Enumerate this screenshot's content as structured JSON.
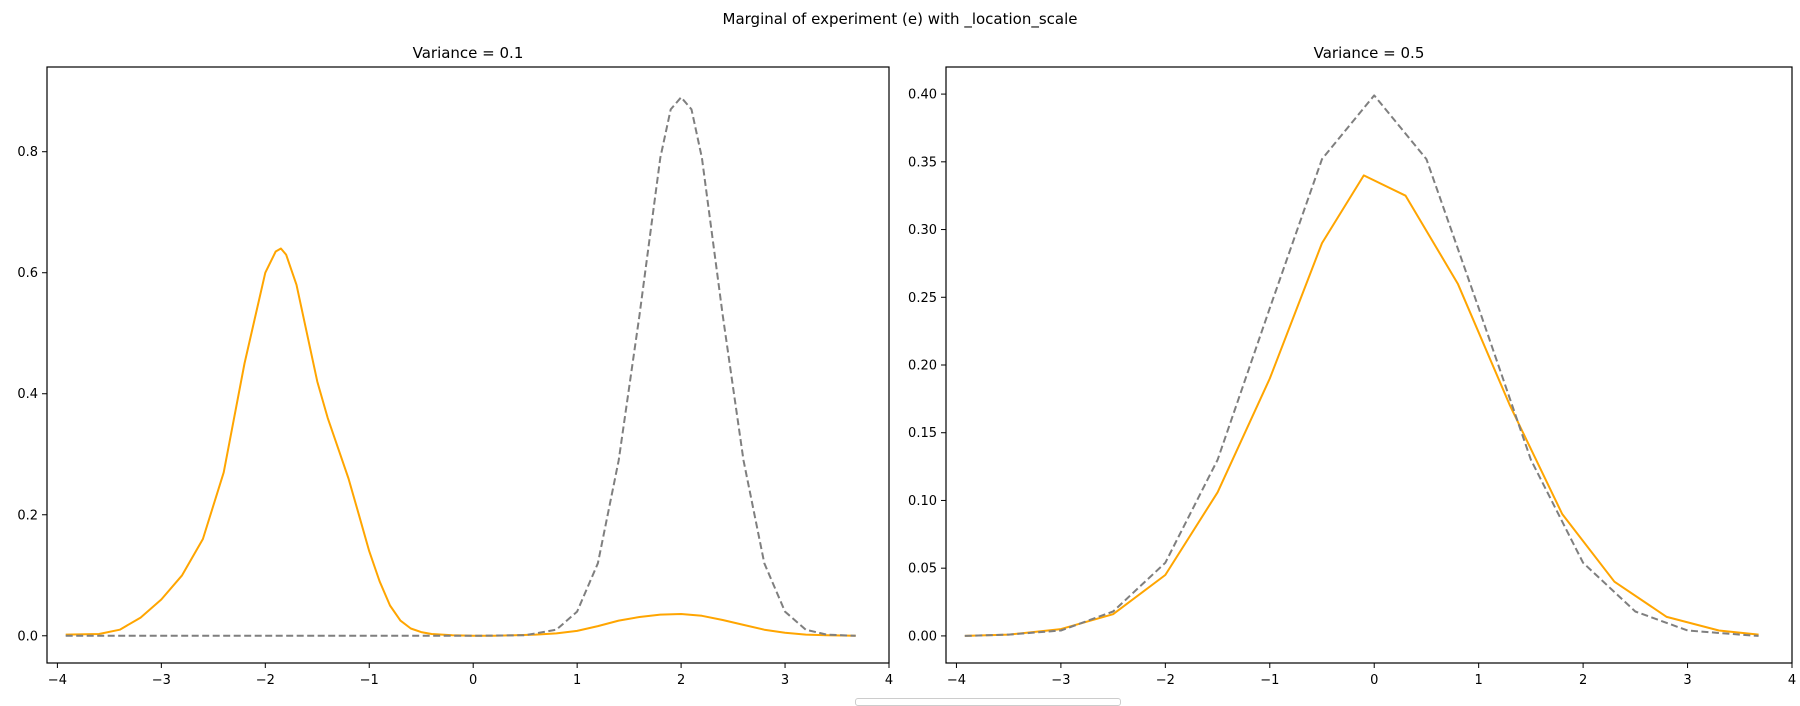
{
  "figure": {
    "title": "Marginal of experiment (e) with _location_scale"
  },
  "colors": {
    "solid": "#FFA500",
    "dashed": "#7F7F7F",
    "axes": "#000000"
  },
  "chart_data": [
    {
      "type": "line",
      "title": "Variance = 0.1",
      "xlabel": "",
      "ylabel": "",
      "xlim": [
        -4.1,
        4.0
      ],
      "ylim": [
        -0.045,
        0.94
      ],
      "xticks": [
        -4,
        -3,
        -2,
        -1,
        0,
        1,
        2,
        3,
        4
      ],
      "xtick_labels": [
        "−4",
        "−3",
        "−2",
        "−1",
        "0",
        "1",
        "2",
        "3",
        "4"
      ],
      "yticks": [
        0.0,
        0.2,
        0.4,
        0.6,
        0.8
      ],
      "ytick_labels": [
        "0.0",
        "0.2",
        "0.4",
        "0.6",
        "0.8"
      ],
      "grid": false,
      "series": [
        {
          "style": "solid",
          "color": "#FFA500",
          "x": [
            -3.92,
            -3.6,
            -3.4,
            -3.2,
            -3.0,
            -2.8,
            -2.6,
            -2.4,
            -2.2,
            -2.0,
            -1.9,
            -1.85,
            -1.8,
            -1.7,
            -1.6,
            -1.5,
            -1.4,
            -1.3,
            -1.2,
            -1.1,
            -1.0,
            -0.9,
            -0.8,
            -0.7,
            -0.6,
            -0.5,
            -0.4,
            -0.2,
            0.0,
            0.2,
            0.4,
            0.6,
            0.8,
            1.0,
            1.2,
            1.4,
            1.6,
            1.8,
            2.0,
            2.2,
            2.4,
            2.6,
            2.8,
            3.0,
            3.2,
            3.4,
            3.68
          ],
          "y": [
            0.002,
            0.003,
            0.01,
            0.03,
            0.06,
            0.1,
            0.16,
            0.27,
            0.45,
            0.6,
            0.635,
            0.64,
            0.63,
            0.58,
            0.5,
            0.42,
            0.36,
            0.31,
            0.26,
            0.2,
            0.14,
            0.09,
            0.05,
            0.025,
            0.012,
            0.006,
            0.003,
            0.001,
            0.0,
            0.0,
            0.001,
            0.002,
            0.004,
            0.008,
            0.016,
            0.025,
            0.031,
            0.035,
            0.036,
            0.033,
            0.026,
            0.018,
            0.01,
            0.005,
            0.002,
            0.001,
            0.0
          ]
        },
        {
          "style": "dashed",
          "color": "#7F7F7F",
          "x": [
            -3.92,
            -3.0,
            -2.0,
            -1.0,
            0.0,
            0.5,
            0.8,
            1.0,
            1.2,
            1.4,
            1.6,
            1.7,
            1.8,
            1.9,
            2.0,
            2.1,
            2.2,
            2.3,
            2.4,
            2.6,
            2.8,
            3.0,
            3.2,
            3.4,
            3.68
          ],
          "y": [
            0.0,
            0.0,
            0.0,
            0.0,
            0.0,
            0.001,
            0.01,
            0.04,
            0.12,
            0.29,
            0.53,
            0.66,
            0.79,
            0.87,
            0.89,
            0.87,
            0.79,
            0.66,
            0.53,
            0.29,
            0.12,
            0.04,
            0.01,
            0.002,
            0.0
          ]
        }
      ]
    },
    {
      "type": "line",
      "title": "Variance = 0.5",
      "xlabel": "",
      "ylabel": "",
      "xlim": [
        -4.1,
        4.0
      ],
      "ylim": [
        -0.02,
        0.42
      ],
      "xticks": [
        -4,
        -3,
        -2,
        -1,
        0,
        1,
        2,
        3,
        4
      ],
      "xtick_labels": [
        "−4",
        "−3",
        "−2",
        "−1",
        "0",
        "1",
        "2",
        "3",
        "4"
      ],
      "yticks": [
        0.0,
        0.05,
        0.1,
        0.15,
        0.2,
        0.25,
        0.3,
        0.35,
        0.4
      ],
      "ytick_labels": [
        "0.00",
        "0.05",
        "0.10",
        "0.15",
        "0.20",
        "0.25",
        "0.30",
        "0.35",
        "0.40"
      ],
      "grid": false,
      "series": [
        {
          "style": "solid",
          "color": "#FFA500",
          "x": [
            -3.92,
            -3.5,
            -3.0,
            -2.5,
            -2.0,
            -1.5,
            -1.0,
            -0.5,
            -0.1,
            0.3,
            0.8,
            1.3,
            1.8,
            2.3,
            2.8,
            3.3,
            3.68
          ],
          "y": [
            0.0,
            0.001,
            0.005,
            0.016,
            0.045,
            0.106,
            0.19,
            0.29,
            0.34,
            0.325,
            0.26,
            0.17,
            0.09,
            0.04,
            0.014,
            0.004,
            0.001
          ]
        },
        {
          "style": "dashed",
          "color": "#7F7F7F",
          "x": [
            -3.92,
            -3.5,
            -3.0,
            -2.5,
            -2.0,
            -1.5,
            -1.0,
            -0.5,
            0.0,
            0.5,
            1.0,
            1.5,
            2.0,
            2.5,
            3.0,
            3.5,
            3.68
          ],
          "y": [
            0.0,
            0.001,
            0.004,
            0.018,
            0.054,
            0.13,
            0.242,
            0.352,
            0.399,
            0.352,
            0.242,
            0.13,
            0.054,
            0.018,
            0.004,
            0.001,
            0.0
          ]
        }
      ]
    }
  ]
}
